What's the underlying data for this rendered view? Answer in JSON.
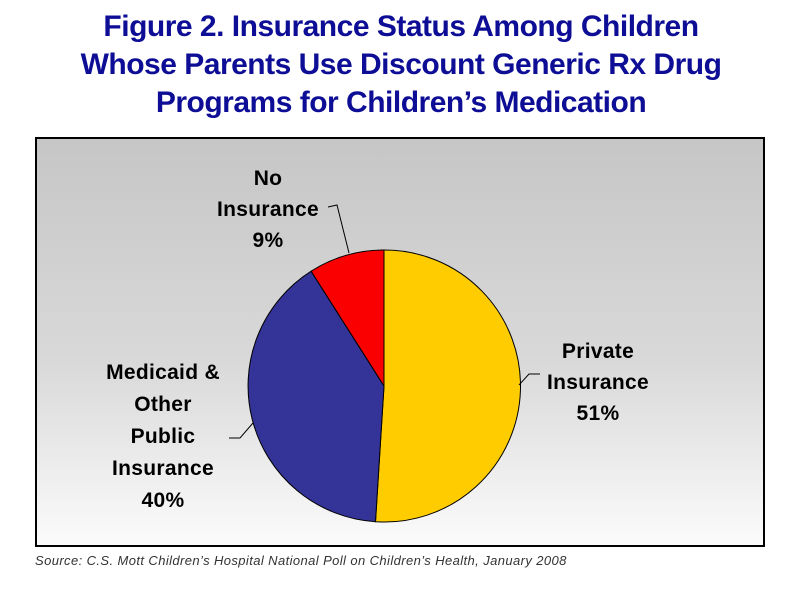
{
  "title": {
    "lines": [
      "Figure 2. Insurance Status Among Children",
      "Whose Parents Use Discount Generic Rx Drug",
      "Programs for Children’s Medication"
    ]
  },
  "chart_data": {
    "type": "pie",
    "title": "Figure 2. Insurance Status Among Children Whose Parents Use Discount Generic Rx Drug Programs for Children’s Medication",
    "labels": [
      "Private Insurance",
      "Medicaid & Other Public Insurance",
      "No Insurance"
    ],
    "values": [
      51,
      40,
      9
    ],
    "units": "percent",
    "colors": [
      "#ffcc00",
      "#343397",
      "#fa0000"
    ],
    "start_angle_deg": 0,
    "direction": "clockwise",
    "legend_position": "none",
    "label_style": "outside-with-leader-lines",
    "slice_labels": [
      {
        "lines": [
          "Private",
          "Insurance",
          "51%"
        ]
      },
      {
        "lines": [
          "Medicaid &",
          "Other",
          "Public",
          "Insurance",
          "40%"
        ]
      },
      {
        "lines": [
          "No",
          "Insurance",
          "9%"
        ]
      }
    ],
    "background": {
      "fill": "vertical-gray-gradient",
      "top_color": "#c6c6c6",
      "bottom_color": "#fbfbfb",
      "border_color": "#000000"
    }
  },
  "colors": {
    "title_text": "#0d0d96",
    "label_text": "#000000",
    "slice_outline": "#000000"
  },
  "source": {
    "text": "Source: C.S. Mott Children’s Hospital National Poll on Children’s Health, January 2008"
  }
}
